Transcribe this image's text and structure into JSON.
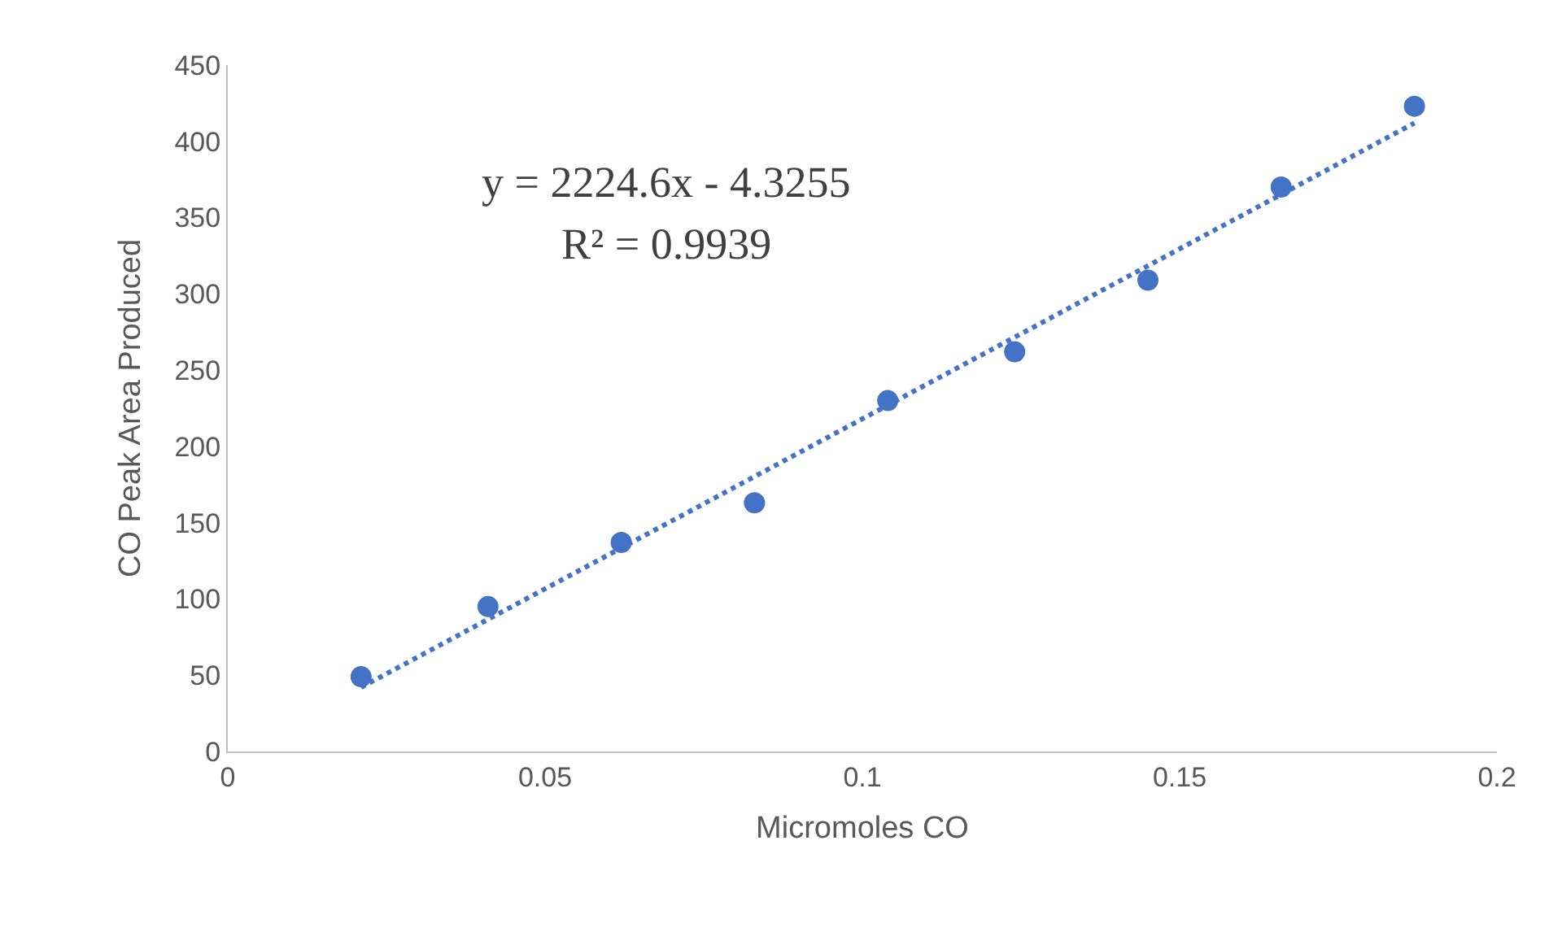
{
  "chart_data": {
    "type": "scatter",
    "xlabel": "Micromoles CO",
    "ylabel": "CO Peak Area Produced",
    "xlim": [
      0,
      0.2
    ],
    "xticks": [
      0,
      0.05,
      0.1,
      0.15,
      0.2
    ],
    "ylim": [
      0,
      450
    ],
    "yticks": [
      0,
      50,
      100,
      150,
      200,
      250,
      300,
      350,
      400,
      450
    ],
    "marker": "circle",
    "x": [
      0.021,
      0.041,
      0.062,
      0.083,
      0.104,
      0.124,
      0.145,
      0.166,
      0.187
    ],
    "series": [
      {
        "color": "#4472c4",
        "values": [
          49,
          95,
          137,
          163,
          230,
          262,
          309,
          370,
          423
        ]
      },
      {
        "type": "line",
        "color": "#4472c4",
        "line_style": "dotted",
        "marker": "none",
        "x": [
          0.021,
          0.187
        ],
        "values": [
          42,
          412
        ]
      }
    ],
    "annotations": [
      "y = 2224.6x - 4.3255",
      "R² = 0.9939"
    ]
  }
}
